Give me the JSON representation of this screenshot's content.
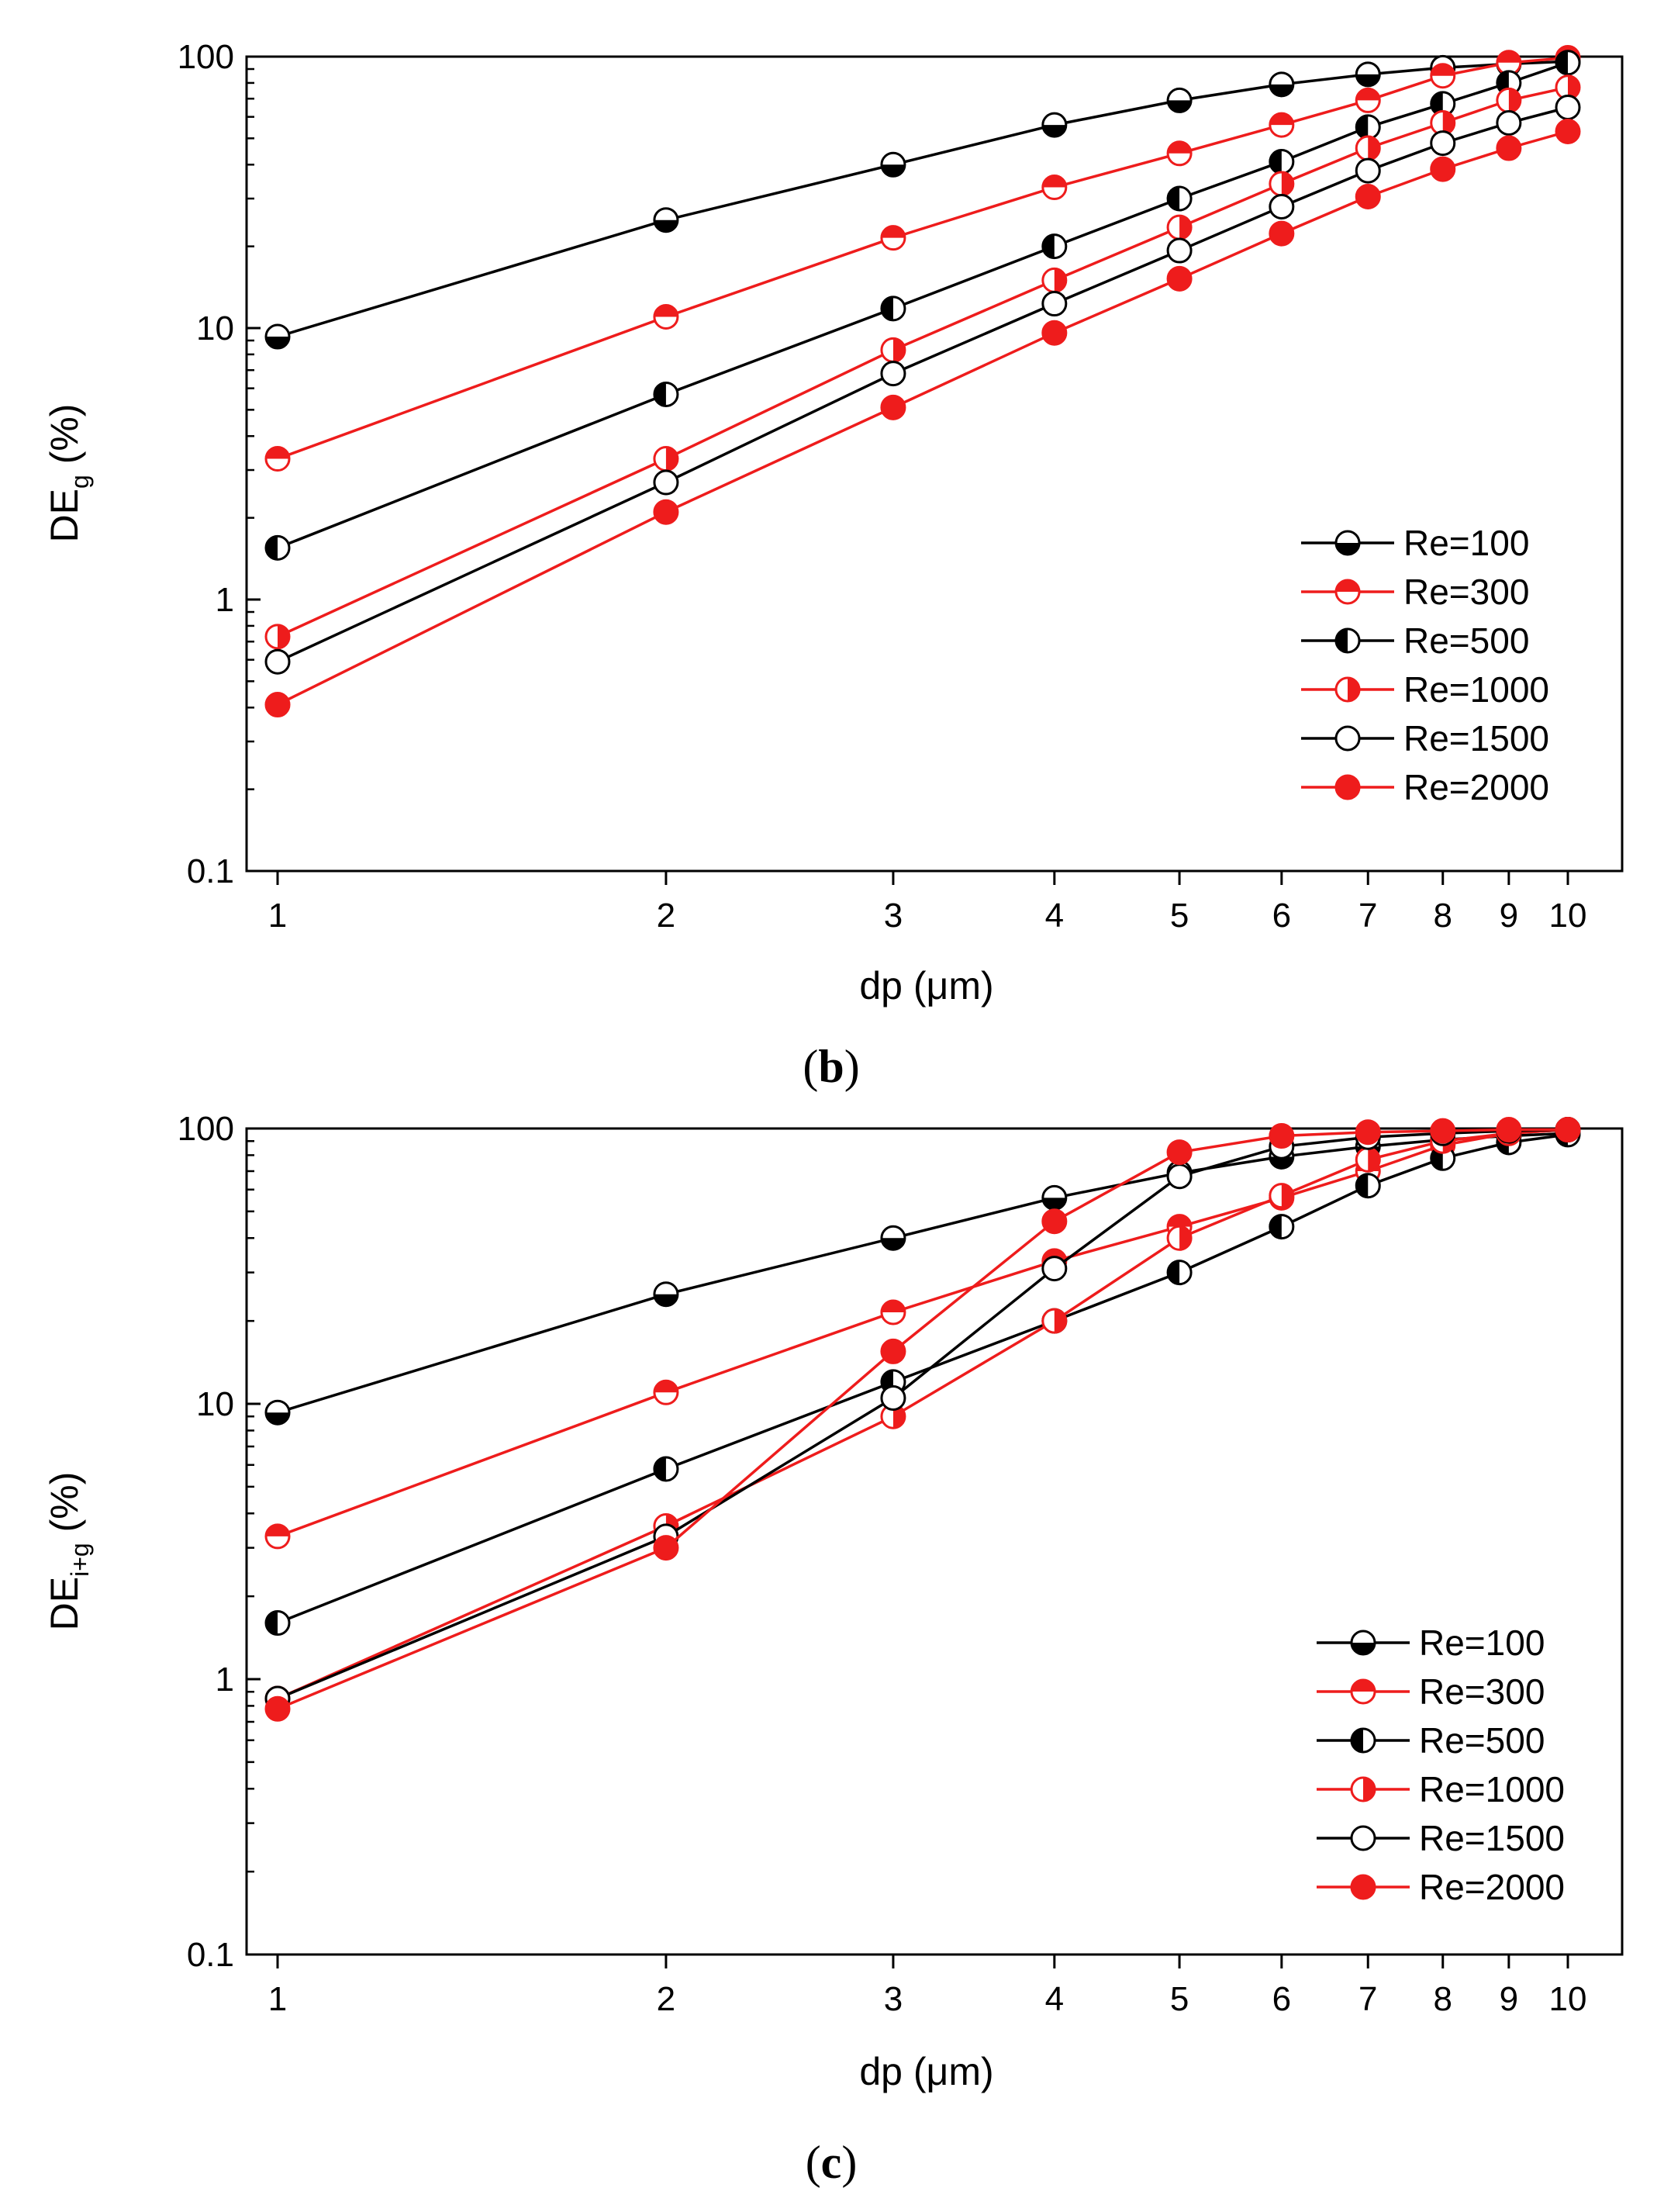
{
  "chart_data": [
    {
      "type": "line",
      "panel_label": "b",
      "xlabel": "dp (μm)",
      "ylabel_main": "DE",
      "ylabel_sub": "g",
      "ylabel_suffix": "(%)",
      "xscale": "log",
      "yscale": "log",
      "xlim": [
        1,
        10
      ],
      "ylim": [
        0.1,
        100
      ],
      "xticks": [
        1,
        2,
        3,
        4,
        5,
        6,
        7,
        8,
        9,
        10
      ],
      "xtick_labels": [
        "1",
        "2",
        "3",
        "4",
        "5",
        "6",
        "7",
        "8",
        "9",
        "10"
      ],
      "yticks": [
        0.1,
        1,
        10,
        100
      ],
      "ytick_labels": [
        "0.1",
        "1",
        "10",
        "100"
      ],
      "legend_position": "lower-right",
      "x": [
        1,
        2,
        3,
        4,
        5,
        6,
        7,
        8,
        9,
        10
      ],
      "series": [
        {
          "name": "Re=100",
          "color": "#000000",
          "marker": "half-bottom",
          "values": [
            9.3,
            25,
            40,
            56,
            69,
            79,
            86,
            91,
            94,
            96
          ]
        },
        {
          "name": "Re=300",
          "color": "#ee1c1c",
          "marker": "half-top",
          "values": [
            3.3,
            11,
            21.5,
            33,
            44,
            56,
            69,
            85,
            95,
            99
          ]
        },
        {
          "name": "Re=500",
          "color": "#000000",
          "marker": "half-left",
          "values": [
            1.55,
            5.7,
            11.8,
            20,
            30,
            41,
            55,
            67,
            80,
            95
          ]
        },
        {
          "name": "Re=1000",
          "color": "#ee1c1c",
          "marker": "half-right",
          "values": [
            0.73,
            3.3,
            8.3,
            15,
            23.5,
            34,
            46,
            57,
            69,
            77
          ]
        },
        {
          "name": "Re=1500",
          "color": "#000000",
          "marker": "open",
          "values": [
            0.59,
            2.7,
            6.8,
            12.3,
            19.3,
            28,
            38,
            48,
            57,
            65
          ]
        },
        {
          "name": "Re=2000",
          "color": "#ee1c1c",
          "marker": "filled",
          "values": [
            0.41,
            2.1,
            5.1,
            9.6,
            15.2,
            22.3,
            30.5,
            38.5,
            46,
            53
          ]
        }
      ]
    },
    {
      "type": "line",
      "panel_label": "c",
      "xlabel": "dp (μm)",
      "ylabel_main": "DE",
      "ylabel_sub": "i+g",
      "ylabel_suffix": "(%)",
      "xscale": "log",
      "yscale": "log",
      "xlim": [
        1,
        10
      ],
      "ylim": [
        0.1,
        100
      ],
      "xticks": [
        1,
        2,
        3,
        4,
        5,
        6,
        7,
        8,
        9,
        10
      ],
      "xtick_labels": [
        "1",
        "2",
        "3",
        "4",
        "5",
        "6",
        "7",
        "8",
        "9",
        "10"
      ],
      "yticks": [
        0.1,
        1,
        10,
        100
      ],
      "ytick_labels": [
        "0.1",
        "1",
        "10",
        "100"
      ],
      "legend_position": "lower-right",
      "x": [
        1,
        2,
        3,
        4,
        5,
        6,
        7,
        8,
        9,
        10
      ],
      "series": [
        {
          "name": "Re=100",
          "color": "#000000",
          "marker": "half-bottom",
          "values": [
            9.3,
            25,
            40,
            56,
            69,
            79,
            86,
            91,
            94,
            96
          ]
        },
        {
          "name": "Re=300",
          "color": "#ee1c1c",
          "marker": "half-top",
          "values": [
            3.3,
            11,
            21.5,
            33,
            44,
            56,
            70,
            87,
            96,
            99
          ]
        },
        {
          "name": "Re=500",
          "color": "#000000",
          "marker": "half-left",
          "values": [
            1.6,
            5.8,
            12,
            20,
            30,
            44,
            62,
            78,
            89,
            95
          ]
        },
        {
          "name": "Re=1000",
          "color": "#ee1c1c",
          "marker": "half-right",
          "values": [
            0.85,
            3.6,
            9,
            20,
            40,
            57,
            77,
            90,
            96,
            99
          ]
        },
        {
          "name": "Re=1500",
          "color": "#000000",
          "marker": "open",
          "values": [
            0.85,
            3.3,
            10.5,
            31,
            67,
            86,
            93,
            96,
            98,
            99
          ]
        },
        {
          "name": "Re=2000",
          "color": "#ee1c1c",
          "marker": "filled",
          "values": [
            0.78,
            3,
            15.5,
            46,
            82,
            94,
            97,
            98,
            99,
            99
          ]
        }
      ]
    }
  ]
}
